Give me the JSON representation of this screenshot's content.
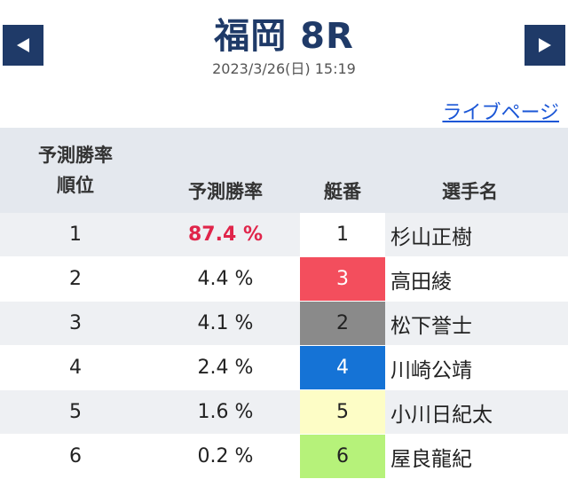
{
  "header": {
    "title": "福岡 8R",
    "datetime": "2023/3/26(日) 15:19",
    "prev_icon": "triangle-left-icon",
    "next_icon": "triangle-right-icon",
    "nav_color": "#1f3a68"
  },
  "live_link": "ライブページ",
  "table": {
    "headers": {
      "rank_line1": "予測勝率",
      "rank_line2": "順位",
      "rate": "予測勝率",
      "boat": "艇番",
      "name": "選手名"
    },
    "rows": [
      {
        "rank": "1",
        "rate": "87.4 %",
        "boat": "1",
        "name": "杉山正樹"
      },
      {
        "rank": "2",
        "rate": "4.4 %",
        "boat": "3",
        "name": "高田綾"
      },
      {
        "rank": "3",
        "rate": "4.1 %",
        "boat": "2",
        "name": "松下誉士"
      },
      {
        "rank": "4",
        "rate": "2.4 %",
        "boat": "4",
        "name": "川崎公靖"
      },
      {
        "rank": "5",
        "rate": "1.6 %",
        "boat": "5",
        "name": "小川日紀太"
      },
      {
        "rank": "6",
        "rate": "0.2 %",
        "boat": "6",
        "name": "屋良龍紀"
      }
    ],
    "highlight_color": "#e0254a"
  }
}
